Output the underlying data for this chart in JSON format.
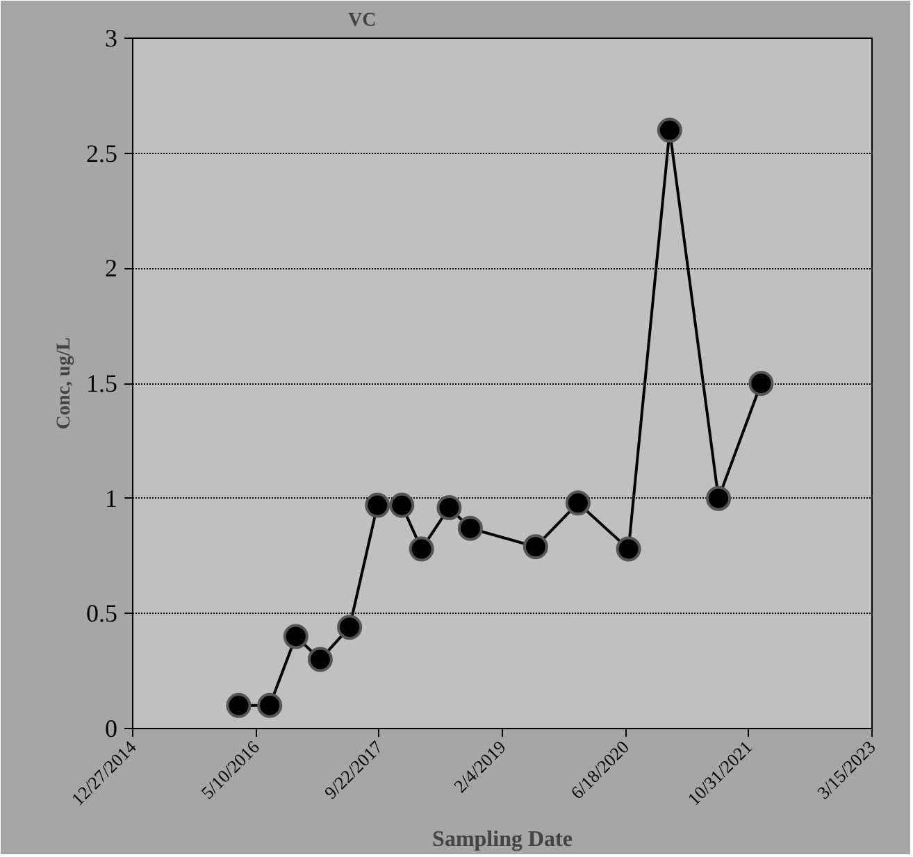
{
  "chart_data": {
    "type": "line",
    "title": "VC",
    "xlabel": "Sampling Date",
    "ylabel": "Conc, ug/L",
    "x": [
      "2016-03-01",
      "2016-07-05",
      "2016-10-19",
      "2017-01-26",
      "2017-05-25",
      "2017-09-15",
      "2017-12-23",
      "2018-03-13",
      "2018-07-03",
      "2018-09-27",
      "2019-06-19",
      "2019-12-08",
      "2020-06-30",
      "2020-12-14",
      "2021-06-30",
      "2021-12-20"
    ],
    "series": [
      {
        "color": "#000000",
        "values": [
          0.1,
          0.1,
          0.4,
          0.3,
          0.44,
          0.97,
          0.97,
          0.78,
          0.96,
          0.87,
          0.79,
          0.98,
          0.78,
          2.6,
          1.0,
          1.5
        ]
      }
    ],
    "xlim": [
      "2014-12-27",
      "2023-03-15"
    ],
    "xticks": [
      {
        "value": "2014-12-27",
        "label": "12/27/2014"
      },
      {
        "value": "2016-05-10",
        "label": "5/10/2016"
      },
      {
        "value": "2017-09-22",
        "label": "9/22/2017"
      },
      {
        "value": "2019-02-04",
        "label": "2/4/2019"
      },
      {
        "value": "2020-06-18",
        "label": "6/18/2020"
      },
      {
        "value": "2021-10-31",
        "label": "10/31/2021"
      },
      {
        "value": "2023-03-15",
        "label": "3/15/2023"
      }
    ],
    "ylim": [
      0,
      3
    ],
    "yticks": [
      0,
      0.5,
      1,
      1.5,
      2,
      2.5,
      3
    ],
    "grid": "y",
    "marker": "circle",
    "line_style": "solid"
  }
}
